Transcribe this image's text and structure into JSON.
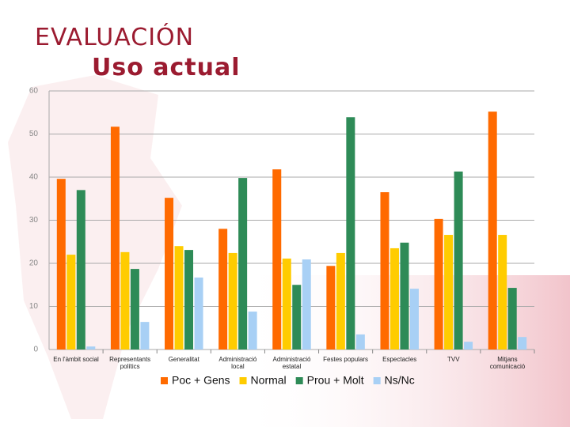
{
  "chart_data": {
    "type": "bar",
    "title": "EVALUACIÓN",
    "subtitle": "Uso actual",
    "categories": [
      "En l'àmbit social",
      "Representants polítics",
      "Generalitat",
      "Administració local",
      "Administració estatal",
      "Festes populars",
      "Espectacles",
      "TVV",
      "Mitjans comunicació"
    ],
    "series": [
      {
        "name": "Poc + Gens",
        "color": "#ff6a00",
        "values": [
          39.6,
          51.7,
          35.2,
          28.0,
          41.8,
          19.4,
          36.5,
          30.3,
          55.2
        ]
      },
      {
        "name": "Normal",
        "color": "#ffcc00",
        "values": [
          22.0,
          22.6,
          24.0,
          22.4,
          21.1,
          22.4,
          23.5,
          26.6,
          26.6
        ]
      },
      {
        "name": "Prou + Molt",
        "color": "#2e8b57",
        "values": [
          37.0,
          18.7,
          23.1,
          39.8,
          15.0,
          53.9,
          24.8,
          41.3,
          14.3
        ]
      },
      {
        "name": "Ns/Nc",
        "color": "#a8d0f5",
        "values": [
          0.7,
          6.4,
          16.7,
          8.8,
          20.9,
          3.5,
          14.1,
          1.8,
          2.9
        ]
      }
    ],
    "ylim": [
      0,
      60
    ],
    "yticks": [
      0,
      10,
      20,
      30,
      40,
      50,
      60
    ],
    "grid": true,
    "legend": "bottom"
  }
}
